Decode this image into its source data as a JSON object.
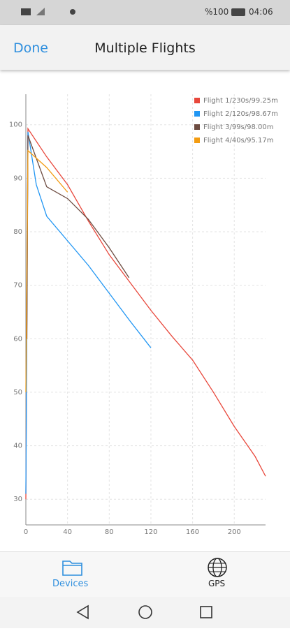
{
  "status_bar": {
    "battery": "%100",
    "time": "04:06"
  },
  "header": {
    "done": "Done",
    "title": "Multiple Flights"
  },
  "chart_data": {
    "type": "line",
    "xlim": [
      0,
      230
    ],
    "ylim": [
      25.2,
      105.7
    ],
    "xticks": [
      0,
      40,
      80,
      120,
      160,
      200
    ],
    "yticks": [
      30,
      40,
      50,
      60,
      70,
      80,
      90,
      100
    ],
    "grid": true,
    "legend": "top-right",
    "series": [
      {
        "name": "Flight 1/230s/99.25m",
        "color": "#e8473b",
        "x": [
          0,
          2,
          20,
          40,
          60,
          80,
          100,
          120,
          140,
          160,
          180,
          200,
          220,
          230
        ],
        "values": [
          30,
          99.25,
          94,
          88.8,
          82,
          75.7,
          70.5,
          65.3,
          60.5,
          56,
          50,
          43.6,
          38,
          34.3
        ]
      },
      {
        "name": "Flight 2/120s/98.67m",
        "color": "#2196f3",
        "x": [
          0,
          2,
          10,
          20,
          40,
          60,
          80,
          100,
          120
        ],
        "values": [
          31,
          98.67,
          88.8,
          82.9,
          78.3,
          73.7,
          68.5,
          63.3,
          58.3
        ]
      },
      {
        "name": "Flight 3/99s/98.00m",
        "color": "#6d4c41",
        "x": [
          1,
          2,
          20,
          40,
          60,
          80,
          99
        ],
        "values": [
          60,
          98,
          88.4,
          86.2,
          82.3,
          77,
          71.4
        ]
      },
      {
        "name": "Flight 4/40s/95.17m",
        "color": "#f39c12",
        "x": [
          0,
          2,
          20,
          40
        ],
        "values": [
          50,
          95.17,
          92,
          87.4
        ]
      }
    ]
  },
  "bottom_nav": {
    "devices": "Devices",
    "gps": "GPS"
  }
}
